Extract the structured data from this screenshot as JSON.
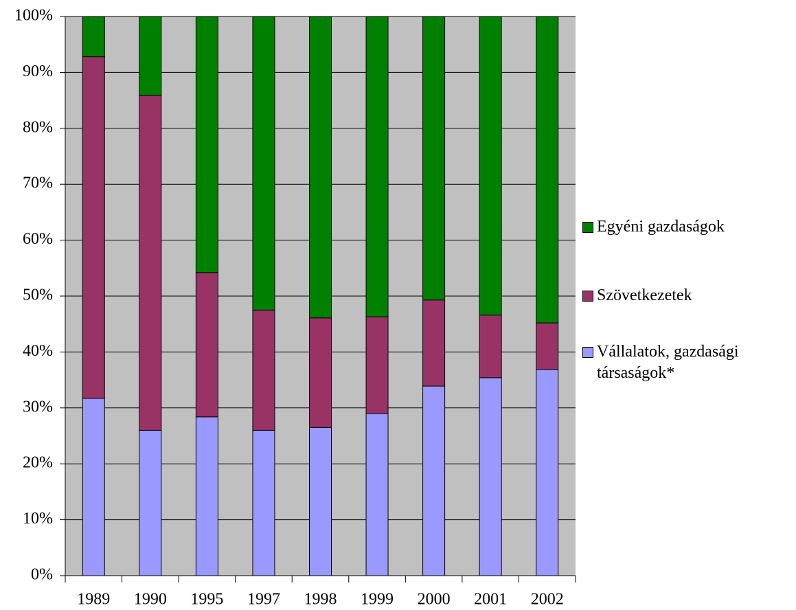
{
  "chart_data": {
    "type": "stacked_bar",
    "categories": [
      "1989",
      "1990",
      "1995",
      "1997",
      "1998",
      "1999",
      "2000",
      "2001",
      "2002"
    ],
    "series": [
      {
        "name": "Vállalatok, gazdasági társaságok*",
        "color": "#9999ff",
        "values": [
          31.7,
          26.0,
          28.4,
          26.0,
          26.5,
          29.0,
          33.9,
          35.4,
          36.9
        ]
      },
      {
        "name": "Szövetkezetek",
        "color": "#993366",
        "values": [
          61.1,
          59.9,
          25.8,
          21.5,
          19.6,
          17.3,
          15.4,
          11.2,
          8.3
        ]
      },
      {
        "name": "Egyéni gazdaságok",
        "color": "#008000",
        "values": [
          7.2,
          14.1,
          45.8,
          52.5,
          53.9,
          53.7,
          50.7,
          53.4,
          54.8
        ]
      }
    ],
    "ylim": [
      0,
      100
    ],
    "yticks": [
      {
        "value": 0,
        "label": "0%"
      },
      {
        "value": 10,
        "label": "10%"
      },
      {
        "value": 20,
        "label": "20%"
      },
      {
        "value": 30,
        "label": "30%"
      },
      {
        "value": 40,
        "label": "40%"
      },
      {
        "value": 50,
        "label": "50%"
      },
      {
        "value": 60,
        "label": "60%"
      },
      {
        "value": 70,
        "label": "70%"
      },
      {
        "value": 80,
        "label": "80%"
      },
      {
        "value": 90,
        "label": "90%"
      },
      {
        "value": 100,
        "label": "100%"
      }
    ],
    "grid": true,
    "plot_background": "#c0c0c0",
    "legend": "right"
  }
}
